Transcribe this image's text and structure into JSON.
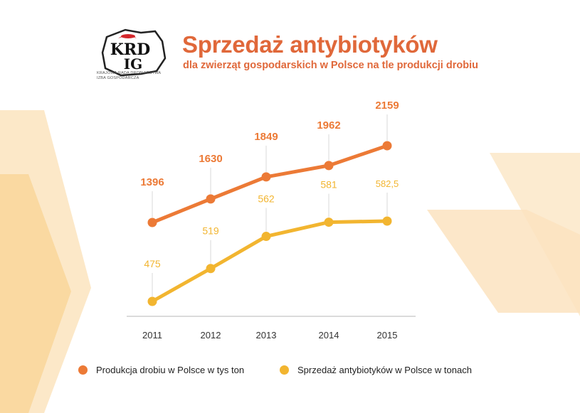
{
  "header": {
    "title": "Sprzedaż antybiotyków",
    "subtitle": "dla zwierząt gospodarskich w Polsce na tle produkcji drobiu"
  },
  "logo": {
    "line1": "KRD",
    "line2": "IG",
    "caption_line1": "KRAJOWA RADA DROBIARSTWA",
    "caption_line2": "IZBA GOSPODARCZA"
  },
  "colors": {
    "title": "#e0683a",
    "series_poultry": "#ec7a36",
    "series_antibiotics": "#f2b530",
    "deco_light": "#fbe3bd",
    "deco_mid": "#f7c982"
  },
  "chart_data": {
    "type": "line",
    "title": "Sprzedaż antybiotyków",
    "categories": [
      "2011",
      "2012",
      "2013",
      "2014",
      "2015"
    ],
    "series": [
      {
        "name": "Produkcja drobiu w Polsce w tys ton",
        "values": [
          1396,
          1630,
          1849,
          1962,
          2159
        ],
        "labels": [
          "1396",
          "1630",
          "1849",
          "1962",
          "2159"
        ],
        "color": "#ec7a36"
      },
      {
        "name": "Sprzedaż antybiotyków w Polsce w tonach",
        "values": [
          475,
          519,
          562,
          581,
          582.5
        ],
        "labels": [
          "475",
          "519",
          "562",
          "581",
          "582,5"
        ],
        "color": "#f2b530"
      }
    ],
    "grid": false,
    "legend": "bottom"
  }
}
